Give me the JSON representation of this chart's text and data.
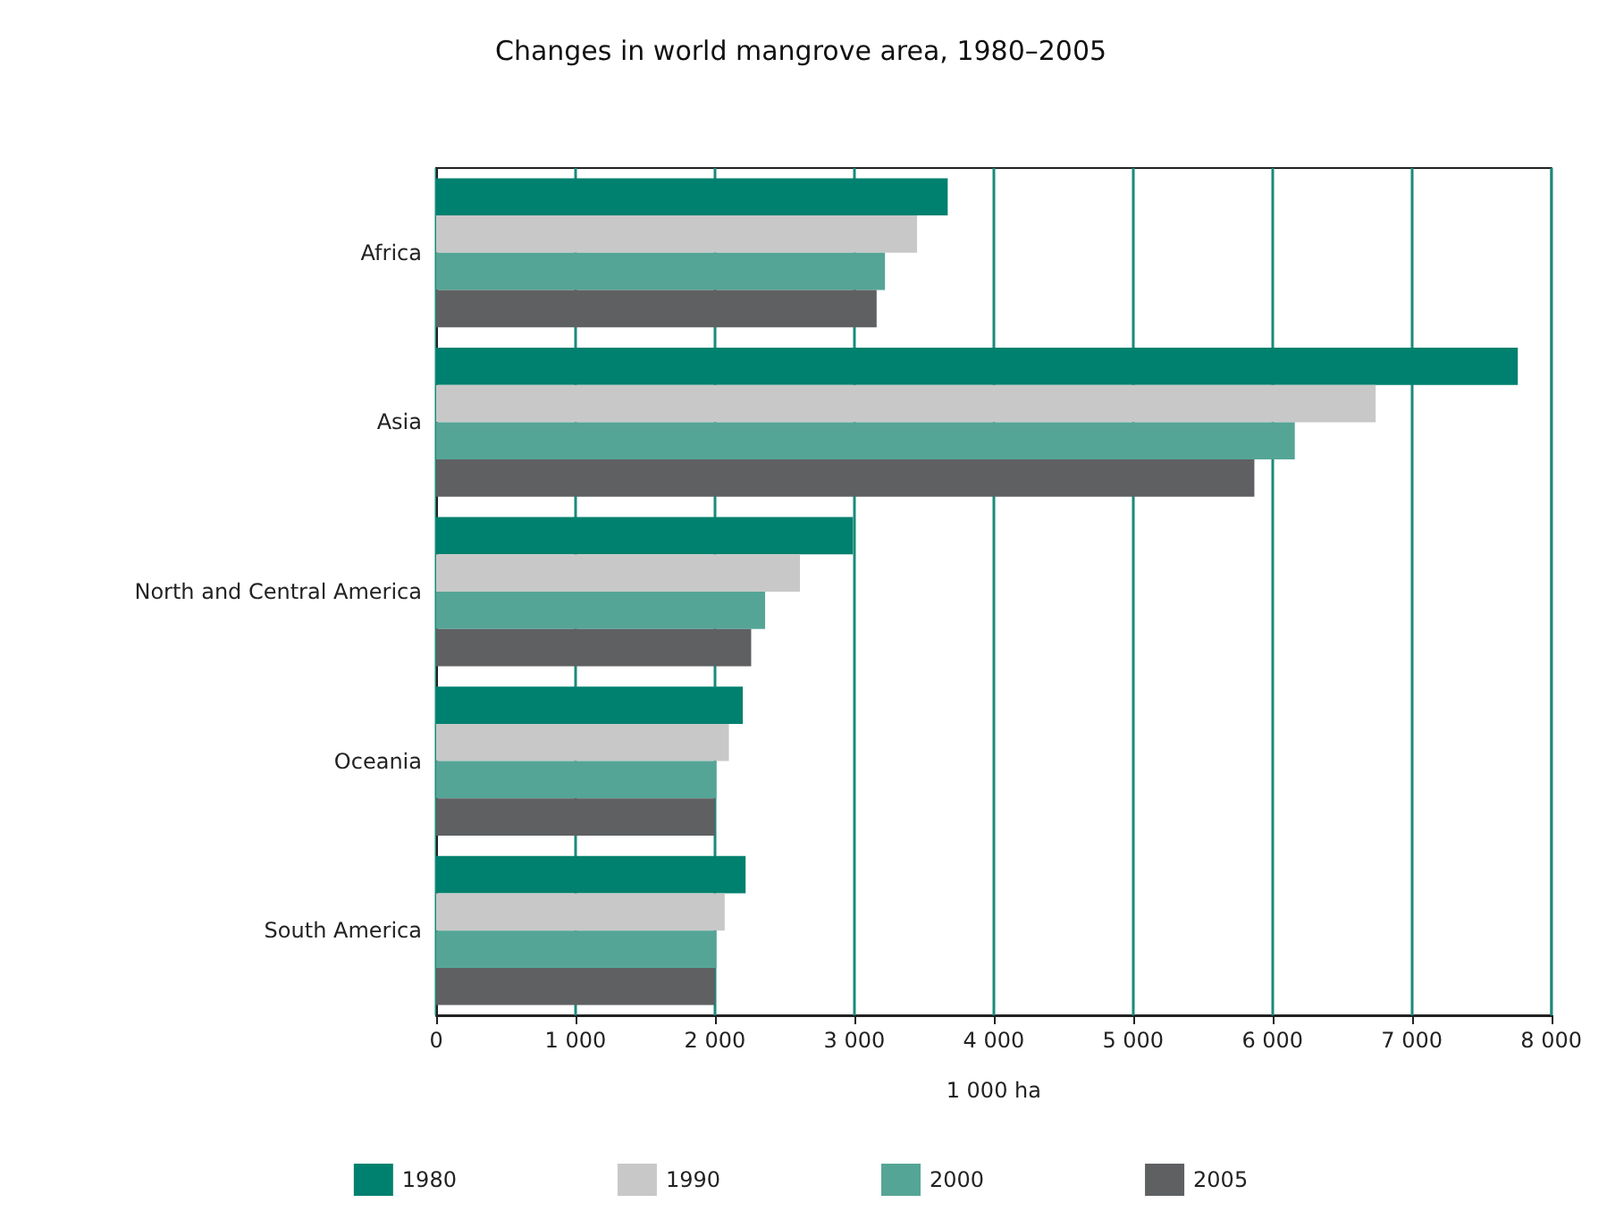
{
  "chart_data": {
    "type": "bar",
    "orientation": "horizontal",
    "title": "Changes in world mangrove area, 1980–2005",
    "xlabel": "1 000 ha",
    "categories": [
      "Africa",
      "Asia",
      "North and Central America",
      "Oceania",
      "South America"
    ],
    "series": [
      {
        "name": "1980",
        "color": "#00806e",
        "values": [
          3670,
          7760,
          2990,
          2200,
          2220
        ]
      },
      {
        "name": "1990",
        "color": "#c8c8c8",
        "values": [
          3450,
          6740,
          2610,
          2100,
          2070
        ]
      },
      {
        "name": "2000",
        "color": "#55a596",
        "values": [
          3220,
          6160,
          2360,
          2010,
          2010
        ]
      },
      {
        "name": "2005",
        "color": "#5f6062",
        "values": [
          3160,
          5870,
          2260,
          2000,
          2000
        ]
      }
    ],
    "xlim": [
      0,
      8000
    ],
    "xticks": [
      0,
      {
        "value": 1000,
        "label": "1 000"
      },
      {
        "value": 2000,
        "label": "2 000"
      },
      {
        "value": 3000,
        "label": "3 000"
      },
      {
        "value": 4000,
        "label": "4 000"
      },
      {
        "value": 5000,
        "label": "5 000"
      },
      {
        "value": 6000,
        "label": "6 000"
      },
      {
        "value": 7000,
        "label": "7 000"
      },
      {
        "value": 8000,
        "label": "8 000"
      }
    ],
    "grid": "x",
    "legend": "bottom"
  }
}
